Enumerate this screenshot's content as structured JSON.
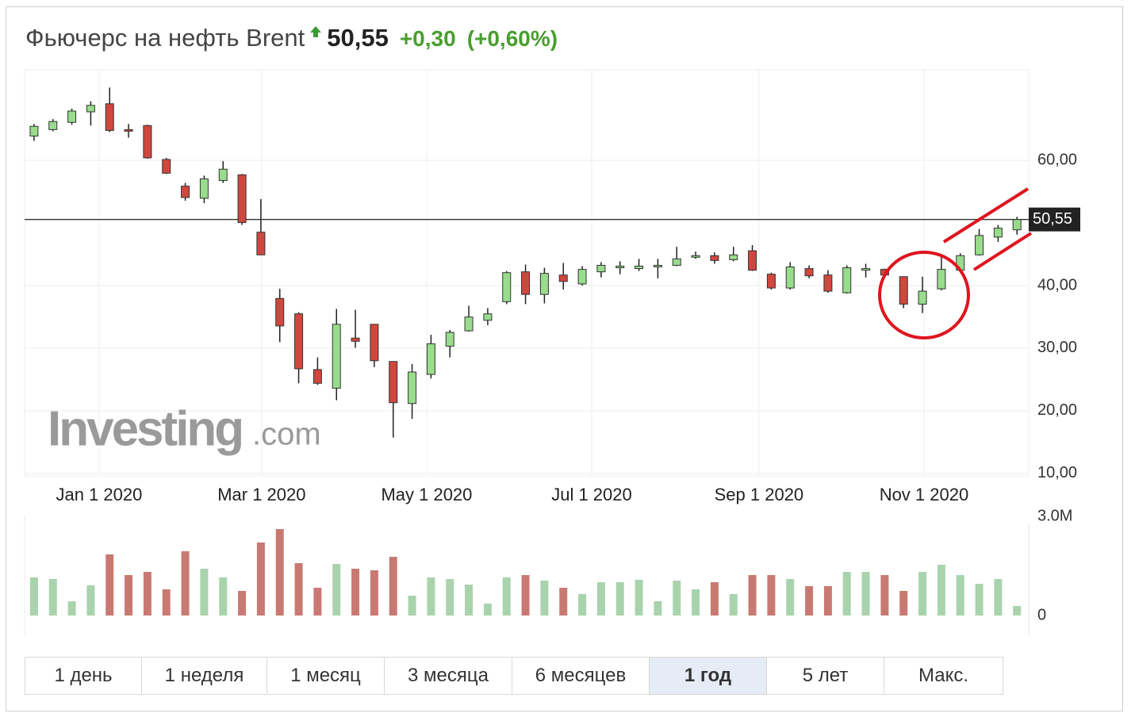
{
  "header": {
    "title": "Фьючерс на нефть Brent",
    "price": "50,55",
    "change": "+0,30",
    "change_pct": "(+0,60%)"
  },
  "watermark": {
    "brand": "Investing",
    "suffix": ".com"
  },
  "chart_data": {
    "type": "candlestick",
    "open": [
      63.87,
      64.9,
      66.06,
      67.74,
      69.03,
      64.9,
      65.55,
      60.13,
      55.87,
      53.94,
      56.77,
      57.68,
      48.52,
      37.94,
      35.48,
      26.58,
      23.61,
      31.61,
      33.81,
      27.87,
      21.16,
      25.81,
      30.32,
      32.77,
      34.45,
      37.42,
      42.19,
      38.58,
      41.68,
      40.26,
      42.19,
      42.84,
      42.71,
      43.1,
      43.23,
      44.52,
      44.77,
      44.13,
      45.55,
      41.81,
      39.61,
      42.71,
      41.68,
      38.84,
      42.45,
      42.58,
      41.42,
      37.03,
      39.48,
      42.45,
      44.9,
      47.74,
      48.9
    ],
    "high": [
      65.81,
      66.58,
      68.26,
      69.42,
      71.61,
      65.81,
      65.68,
      60.39,
      56.39,
      57.55,
      59.87,
      57.81,
      53.81,
      39.48,
      35.74,
      28.52,
      36.26,
      36.13,
      33.81,
      27.87,
      27.48,
      32.13,
      32.9,
      36.77,
      36.39,
      42.32,
      43.35,
      42.84,
      43.61,
      43.1,
      43.74,
      43.87,
      44.26,
      44.26,
      46.19,
      45.42,
      45.29,
      46.19,
      46.45,
      42.06,
      43.74,
      43.23,
      42.45,
      43.23,
      43.48,
      42.71,
      41.42,
      41.42,
      45.03,
      45.16,
      49.03,
      49.68,
      50.97
    ],
    "low": [
      63.1,
      64.65,
      65.68,
      65.55,
      64.52,
      63.61,
      60.26,
      57.81,
      53.55,
      53.16,
      56.39,
      49.68,
      44.9,
      30.97,
      24.39,
      24.13,
      21.68,
      30.06,
      26.97,
      15.74,
      18.71,
      25.16,
      28.52,
      32.65,
      33.68,
      37.03,
      37.03,
      37.16,
      39.35,
      40.0,
      41.29,
      41.81,
      42.32,
      41.16,
      43.1,
      44.26,
      43.48,
      43.87,
      42.32,
      39.35,
      39.35,
      41.16,
      38.84,
      38.71,
      41.29,
      41.29,
      36.39,
      35.61,
      39.23,
      42.32,
      44.77,
      46.97,
      48.13
    ],
    "close": [
      65.42,
      66.19,
      67.87,
      68.77,
      64.77,
      64.77,
      60.39,
      57.94,
      54.06,
      57.03,
      58.58,
      50.06,
      44.9,
      33.55,
      26.71,
      24.39,
      33.81,
      31.1,
      28.0,
      21.29,
      26.19,
      30.71,
      32.52,
      34.97,
      35.48,
      42.06,
      38.58,
      41.94,
      40.65,
      42.58,
      43.23,
      43.1,
      43.1,
      43.23,
      44.26,
      44.77,
      44.0,
      44.9,
      42.45,
      39.61,
      42.97,
      41.55,
      39.1,
      42.84,
      42.71,
      41.68,
      37.03,
      39.1,
      42.58,
      44.77,
      48.0,
      49.16,
      50.55
    ],
    "volume": [
      1152000,
      1104000,
      432000,
      912000,
      1848000,
      1224000,
      1320000,
      792000,
      1944000,
      1416000,
      1152000,
      744000,
      2208000,
      2616000,
      1584000,
      840000,
      1560000,
      1416000,
      1368000,
      1776000,
      600000,
      1152000,
      1104000,
      936000,
      360000,
      1152000,
      1224000,
      1056000,
      840000,
      648000,
      1008000,
      1008000,
      1080000,
      432000,
      1056000,
      792000,
      1008000,
      648000,
      1224000,
      1224000,
      1104000,
      888000,
      888000,
      1320000,
      1320000,
      1224000,
      744000,
      1320000,
      1536000,
      1224000,
      960000,
      1104000,
      288000
    ],
    "up_color": "#98dc8c",
    "down_color": "#d0473e",
    "volume_up_color": "#a9d3ad",
    "volume_down_color": "#c87a72",
    "xlim": [
      -0.5,
      52.62
    ],
    "xticks": [
      {
        "value": 3.44,
        "label": "Jan 1 2020"
      },
      {
        "value": 12.04,
        "label": "Mar 1 2020"
      },
      {
        "value": 20.77,
        "label": "May 1 2020"
      },
      {
        "value": 29.5,
        "label": "Jul 1 2020"
      },
      {
        "value": 38.35,
        "label": "Sep 1 2020"
      },
      {
        "value": 47.08,
        "label": "Nov 1 2020"
      }
    ],
    "ylim": [
      9.6,
      74.45
    ],
    "yticks": [
      {
        "value": 10,
        "label": "10,00"
      },
      {
        "value": 20,
        "label": "20,00"
      },
      {
        "value": 30,
        "label": "30,00"
      },
      {
        "value": 40,
        "label": "40,00"
      },
      {
        "value": 60,
        "label": "60,00"
      }
    ],
    "last_price": {
      "value": 50.55,
      "label": "50,55"
    },
    "volume_ylim": [
      0,
      3000000
    ],
    "volume_ticks": [
      0,
      {
        "value": 3000000,
        "label": "3.0M"
      }
    ],
    "grid": true
  },
  "tabs": {
    "items": [
      "1 день",
      "1 неделя",
      "1 месяц",
      "3 месяца",
      "6 месяцев",
      "1 год",
      "5 лет",
      "Макс."
    ],
    "active": 5
  }
}
